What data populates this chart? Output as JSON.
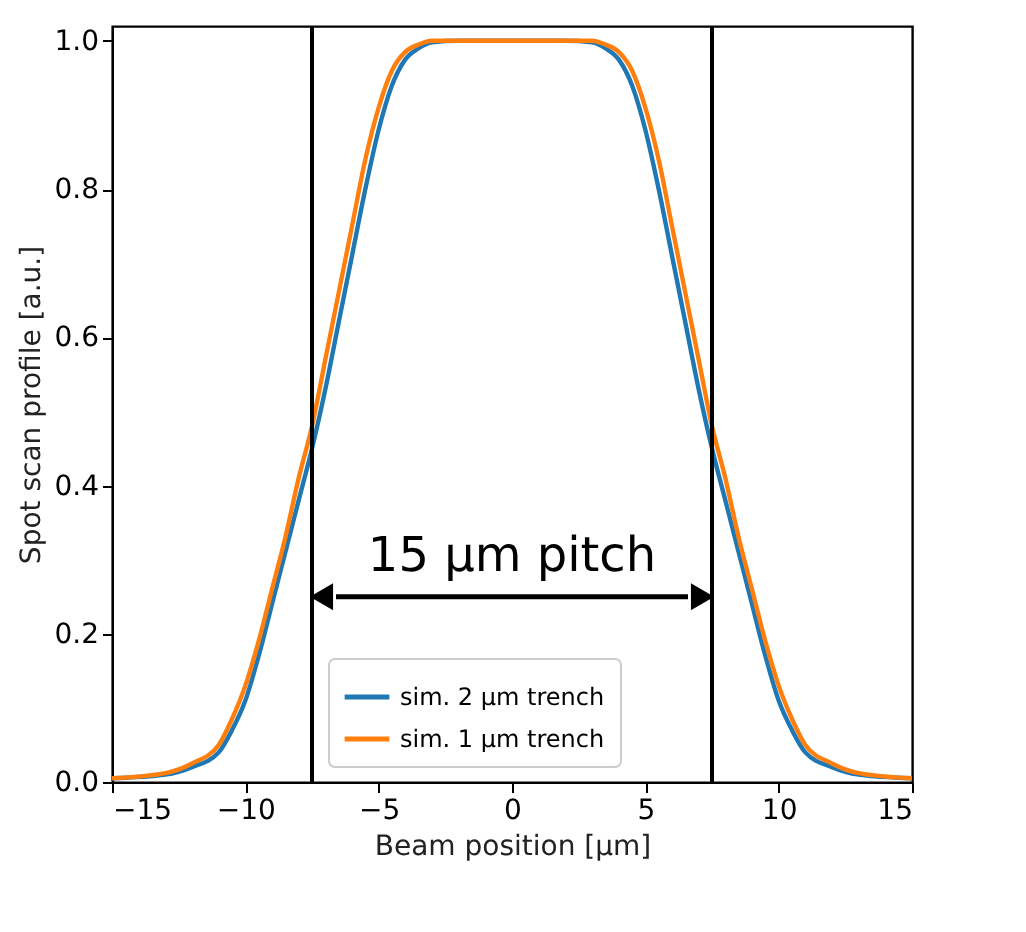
{
  "chart_data": {
    "type": "line",
    "xlabel": "Beam position [μm]",
    "ylabel": "Spot scan profile [a.u.]",
    "xlim": [
      -15,
      15
    ],
    "xticks": [
      -15,
      -10,
      -5,
      0,
      5,
      10,
      15
    ],
    "ylim": [
      0,
      1.02
    ],
    "yticks": [
      {
        "value": 0,
        "label": "0.0"
      },
      {
        "value": 0.2,
        "label": "0.2"
      },
      {
        "value": 0.4,
        "label": "0.4"
      },
      {
        "value": 0.6,
        "label": "0.6"
      },
      {
        "value": 0.8,
        "label": "0.8"
      },
      {
        "value": 1,
        "label": "1.0"
      }
    ],
    "grid": false,
    "legend": "bottom",
    "marker": "none",
    "line_style": "solid",
    "x": [
      -15,
      -13,
      -12,
      -11,
      -10.5,
      -10,
      -9.5,
      -9,
      -8.5,
      -8,
      -7.5,
      -7,
      -6.5,
      -6,
      -5.5,
      -5,
      -4.5,
      -4,
      -3.5,
      -3,
      -2,
      0,
      2,
      3,
      3.5,
      4,
      4.5,
      5,
      5.5,
      6,
      6.5,
      7,
      7.5,
      8,
      8.5,
      9,
      9.5,
      10,
      10.5,
      11,
      12,
      13,
      15
    ],
    "series": [
      {
        "name": "sim. 2 μm trench",
        "color": "#1f77b4",
        "values": [
          0.005,
          0.01,
          0.02,
          0.04,
          0.07,
          0.11,
          0.17,
          0.24,
          0.31,
          0.38,
          0.45,
          0.53,
          0.62,
          0.71,
          0.8,
          0.88,
          0.94,
          0.975,
          0.99,
          0.998,
          1.0,
          1.0,
          1.0,
          0.998,
          0.99,
          0.975,
          0.94,
          0.88,
          0.8,
          0.71,
          0.62,
          0.53,
          0.45,
          0.38,
          0.31,
          0.24,
          0.17,
          0.11,
          0.07,
          0.04,
          0.02,
          0.01,
          0.005
        ]
      },
      {
        "name": "sim. 1 μm trench",
        "color": "#ff7f0e",
        "values": [
          0.005,
          0.012,
          0.025,
          0.05,
          0.085,
          0.13,
          0.19,
          0.26,
          0.33,
          0.41,
          0.48,
          0.57,
          0.66,
          0.75,
          0.84,
          0.91,
          0.96,
          0.985,
          0.995,
          1.0,
          1.0,
          1.0,
          1.0,
          1.0,
          0.995,
          0.985,
          0.96,
          0.91,
          0.84,
          0.75,
          0.66,
          0.57,
          0.48,
          0.41,
          0.33,
          0.26,
          0.19,
          0.13,
          0.085,
          0.05,
          0.025,
          0.012,
          0.005
        ]
      }
    ],
    "ref_lines": [
      {
        "axis": "x",
        "value": -7.5,
        "color": "#000000"
      },
      {
        "axis": "x",
        "value": 7.5,
        "color": "#000000"
      }
    ],
    "annotations": [
      "15 µm pitch"
    ]
  }
}
